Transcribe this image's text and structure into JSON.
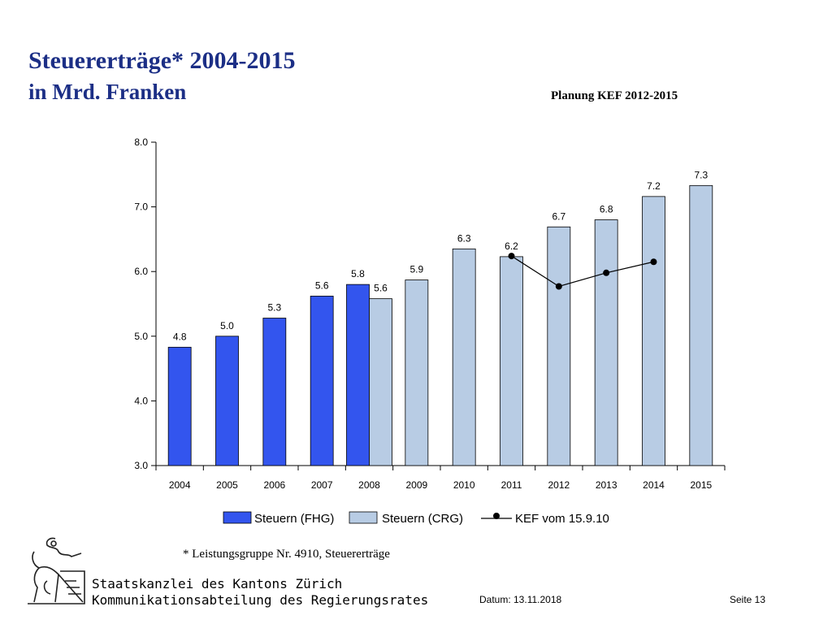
{
  "header": {
    "title": "Steuererträge* 2004-2015",
    "subtitle": "in Mrd. Franken",
    "planung": "Planung KEF 2012-2015"
  },
  "chart_data": {
    "type": "bar",
    "categories": [
      "2004",
      "2005",
      "2006",
      "2007",
      "2008",
      "2009",
      "2010",
      "2011",
      "2012",
      "2013",
      "2014",
      "2015"
    ],
    "ylim": [
      3.0,
      8.0
    ],
    "yticks": [
      "3.0",
      "4.0",
      "5.0",
      "6.0",
      "7.0",
      "8.0"
    ],
    "series": [
      {
        "name": "Steuern (FHG)",
        "type": "bar",
        "color": "#3355ee",
        "values": [
          4.83,
          5.0,
          5.28,
          5.62,
          5.8,
          null,
          null,
          null,
          null,
          null,
          null,
          null
        ],
        "labels": [
          "4.8",
          "5.0",
          "5.3",
          "5.6",
          "5.8",
          "",
          "",
          "",
          "",
          "",
          "",
          ""
        ]
      },
      {
        "name": "Steuern (CRG)",
        "type": "bar",
        "color": "#b8cce4",
        "values": [
          null,
          null,
          null,
          null,
          5.58,
          5.87,
          6.35,
          6.23,
          6.69,
          6.8,
          7.16,
          7.33
        ],
        "labels": [
          "",
          "",
          "",
          "",
          "5.6",
          "5.9",
          "6.3",
          "6.2",
          "6.7",
          "6.8",
          "7.2",
          "7.3"
        ]
      },
      {
        "name": "KEF vom 15.9.10",
        "type": "line",
        "color": "#000000",
        "values": [
          null,
          null,
          null,
          null,
          null,
          null,
          null,
          6.24,
          5.77,
          5.98,
          6.15,
          null
        ]
      }
    ],
    "legend_position": "bottom"
  },
  "footnote": "* Leistungsgruppe Nr. 4910, Steuererträge",
  "footer": {
    "org_line1": "Staatskanzlei des Kantons Zürich",
    "org_line2": "Kommunikationsabteilung des Regierungsrates",
    "datum": "Datum: 13.11.2018",
    "seite": "Seite 13"
  }
}
